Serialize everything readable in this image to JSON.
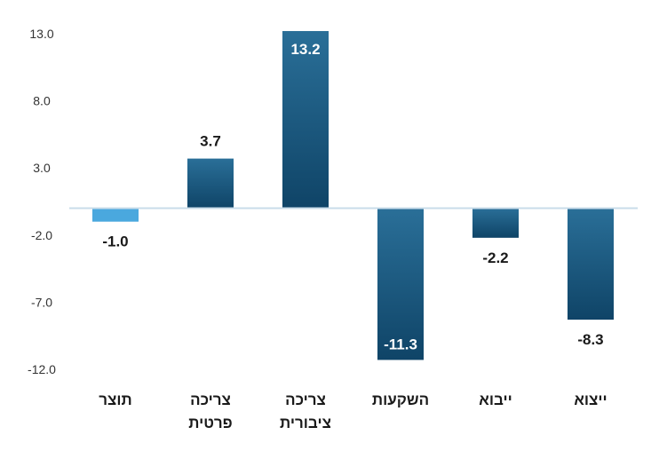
{
  "chart_data": {
    "type": "bar",
    "categories": [
      [
        "תוצר"
      ],
      [
        "צריכה",
        "פרטית"
      ],
      [
        "צריכה",
        "ציבורית"
      ],
      [
        "השקעות"
      ],
      [
        "ייבוא"
      ],
      [
        "ייצוא"
      ]
    ],
    "values": [
      -1.0,
      3.7,
      13.2,
      -11.3,
      -2.2,
      -8.3
    ],
    "value_labels": [
      "-1.0",
      "3.7",
      "13.2",
      "-11.3",
      "-2.2",
      "-8.3"
    ],
    "y_ticks": [
      13.0,
      8.0,
      3.0,
      -2.0,
      -7.0,
      -12.0
    ],
    "y_tick_labels": [
      "13.0",
      "8.0",
      "3.0",
      "-2.0",
      "-7.0",
      "-12.0"
    ],
    "ylim": [
      -12.0,
      13.0
    ],
    "grid": false,
    "legend": "none",
    "colors": {
      "highlight_bar": "#4aa8de",
      "bar_top": "#2a6f98",
      "bar_bottom": "#0f4467",
      "zero_line": "#c9dcea"
    },
    "highlight_index": 0
  }
}
